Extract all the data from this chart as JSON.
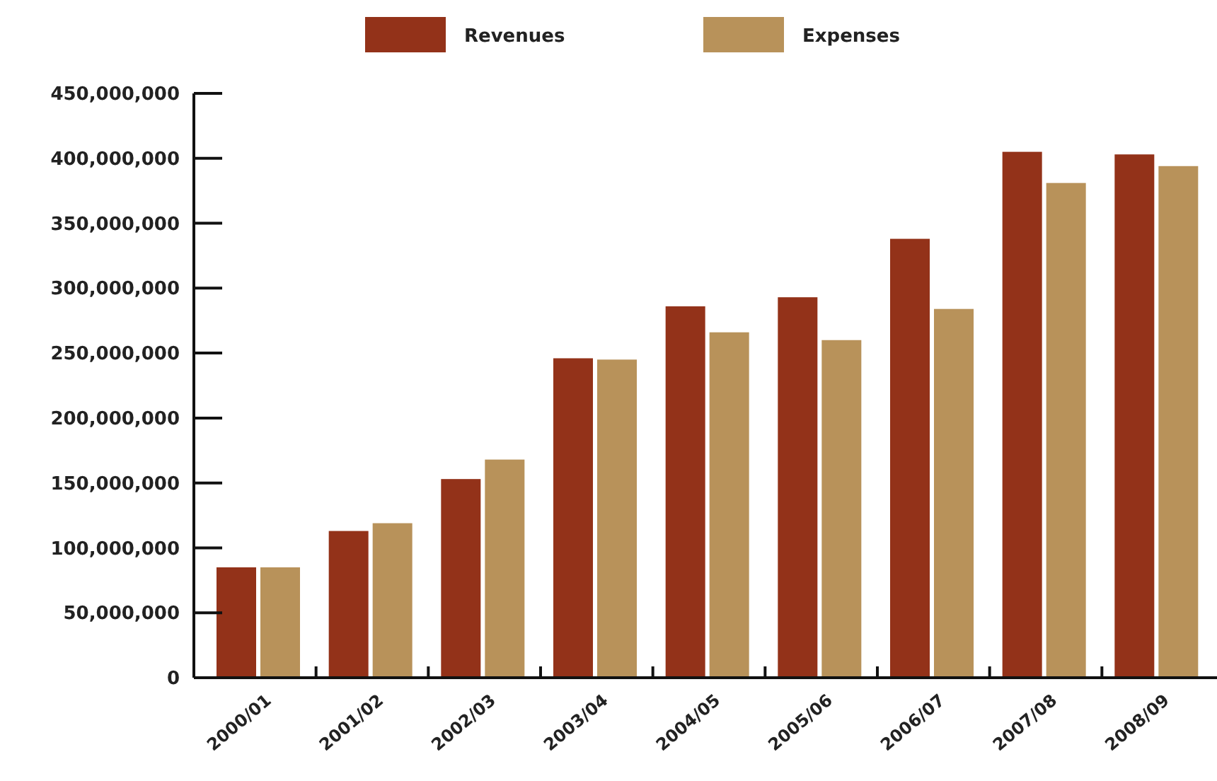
{
  "chart_data": {
    "type": "bar",
    "categories": [
      "2000/01",
      "2001/02",
      "2002/03",
      "2003/04",
      "2004/05",
      "2005/06",
      "2006/07",
      "2007/08",
      "2008/09"
    ],
    "series": [
      {
        "name": "Revenues",
        "color": "#933219",
        "values": [
          85000000,
          113000000,
          153000000,
          246000000,
          286000000,
          293000000,
          338000000,
          405000000,
          403000000
        ]
      },
      {
        "name": "Expenses",
        "color": "#b8925a",
        "values": [
          85000000,
          119000000,
          168000000,
          245000000,
          266000000,
          260000000,
          284000000,
          381000000,
          394000000
        ]
      }
    ],
    "ylim": [
      0,
      450000000
    ],
    "yticks": [
      {
        "value": 0,
        "label": "0"
      },
      {
        "value": 50000000,
        "label": "50,000,000"
      },
      {
        "value": 100000000,
        "label": "100,000,000"
      },
      {
        "value": 150000000,
        "label": "150,000,000"
      },
      {
        "value": 200000000,
        "label": "200,000,000"
      },
      {
        "value": 250000000,
        "label": "250,000,000"
      },
      {
        "value": 300000000,
        "label": "300,000,000"
      },
      {
        "value": 350000000,
        "label": "350,000,000"
      },
      {
        "value": 400000000,
        "label": "400,000,000"
      },
      {
        "value": 450000000,
        "label": "450,000,000"
      }
    ],
    "grid": false,
    "legend": "top"
  }
}
